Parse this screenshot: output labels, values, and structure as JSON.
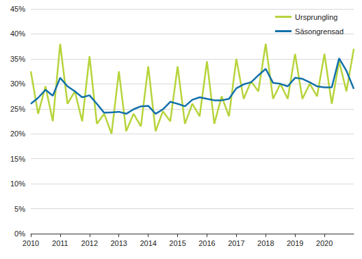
{
  "chart_data": {
    "type": "line",
    "categories": [
      "2010",
      null,
      null,
      null,
      "2011",
      null,
      null,
      null,
      "2012",
      null,
      null,
      null,
      "2013",
      null,
      null,
      null,
      "2014",
      null,
      null,
      null,
      "2015",
      null,
      null,
      null,
      "2016",
      null,
      null,
      null,
      "2017",
      null,
      null,
      null,
      "2018",
      null,
      null,
      null,
      "2019",
      null,
      null,
      null,
      "2020",
      null,
      null,
      null,
      null
    ],
    "series": [
      {
        "name": "Ursprungling",
        "color": "#b6d43b",
        "values": [
          32.5,
          24,
          29.5,
          22.5,
          38,
          26,
          28.5,
          22.5,
          35.5,
          22,
          24,
          20,
          32.5,
          20.5,
          24,
          21.5,
          33.5,
          20.5,
          24.5,
          22.5,
          33.5,
          22,
          26,
          23.5,
          34.5,
          22,
          27.5,
          23.5,
          35,
          27,
          30.5,
          28.5,
          38,
          27,
          30,
          27,
          36,
          27,
          30,
          27.5,
          36,
          26,
          34.5,
          28.5,
          37
        ]
      },
      {
        "name": "Säsongrensad",
        "color": "#1170aa",
        "values": [
          26,
          27.2,
          28.8,
          27.6,
          31.2,
          29.5,
          28.5,
          27.3,
          27.7,
          26,
          24.2,
          24.3,
          24.4,
          24,
          24.9,
          25.5,
          25.6,
          24,
          24.9,
          26.4,
          26,
          25.5,
          26.8,
          27.3,
          27,
          26.7,
          26.7,
          27,
          29.1,
          29.9,
          30.3,
          31.7,
          33,
          30.2,
          30,
          29.5,
          31.2,
          31,
          30.3,
          29.5,
          29.3,
          29.3,
          35.1,
          32.6,
          29
        ]
      }
    ],
    "ylim": [
      0,
      45
    ],
    "yticks": [
      {
        "value": 0,
        "label": "0%"
      },
      {
        "value": 5,
        "label": "5%"
      },
      {
        "value": 10,
        "label": "10%"
      },
      {
        "value": 15,
        "label": "15%"
      },
      {
        "value": 20,
        "label": "20%"
      },
      {
        "value": 25,
        "label": "25%"
      },
      {
        "value": 30,
        "label": "30%"
      },
      {
        "value": 35,
        "label": "35%"
      },
      {
        "value": 40,
        "label": "40%"
      },
      {
        "value": 45,
        "label": "45%"
      }
    ],
    "grid": true,
    "legend": "top-right"
  }
}
